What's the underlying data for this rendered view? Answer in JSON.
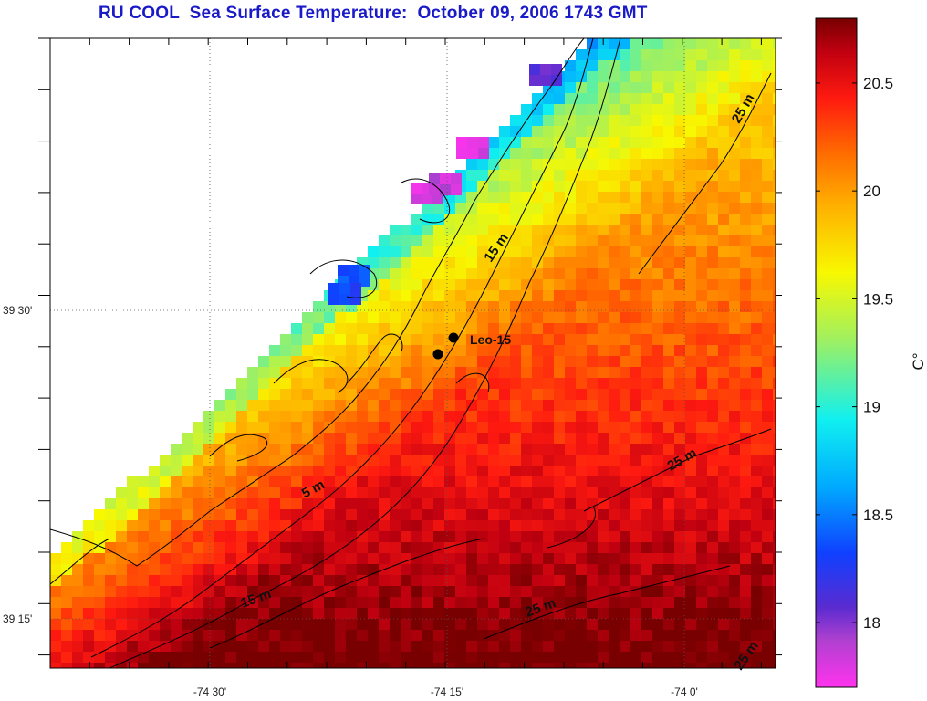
{
  "title": "RU COOL  Sea Surface Temperature:  October 09, 2006 1743 GMT",
  "colorbar": {
    "unit": "C°",
    "ticks": [
      "20.5",
      "20",
      "19.5",
      "19",
      "18.5",
      "18"
    ],
    "min": 17.7,
    "max": 20.8
  },
  "axes": {
    "x_ticks": [
      "-74 30'",
      "-74 15'",
      "-74 0'"
    ],
    "y_ticks": [
      "39 30'",
      "39 15'"
    ]
  },
  "annotations": {
    "station": "Leo-15",
    "contours": [
      "5 m",
      "15 m",
      "15 m",
      "25 m",
      "25 m",
      "25 m",
      "25 m"
    ]
  }
}
